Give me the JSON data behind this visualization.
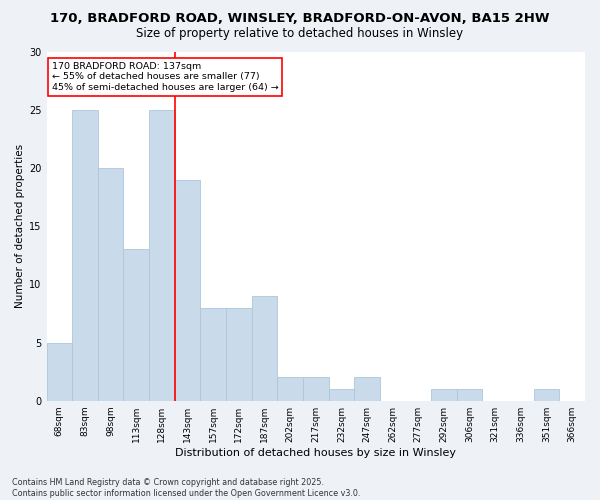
{
  "title1": "170, BRADFORD ROAD, WINSLEY, BRADFORD-ON-AVON, BA15 2HW",
  "title2": "Size of property relative to detached houses in Winsley",
  "xlabel": "Distribution of detached houses by size in Winsley",
  "ylabel": "Number of detached properties",
  "categories": [
    "68sqm",
    "83sqm",
    "98sqm",
    "113sqm",
    "128sqm",
    "143sqm",
    "157sqm",
    "172sqm",
    "187sqm",
    "202sqm",
    "217sqm",
    "232sqm",
    "247sqm",
    "262sqm",
    "277sqm",
    "292sqm",
    "306sqm",
    "321sqm",
    "336sqm",
    "351sqm",
    "366sqm"
  ],
  "values": [
    5,
    25,
    20,
    13,
    25,
    19,
    8,
    8,
    9,
    2,
    2,
    1,
    2,
    0,
    0,
    1,
    1,
    0,
    0,
    1,
    0
  ],
  "bar_color": "#c9daea",
  "bar_edgecolor": "#aec6d8",
  "vline_x": 4.5,
  "vline_color": "red",
  "annotation_text": "170 BRADFORD ROAD: 137sqm\n← 55% of detached houses are smaller (77)\n45% of semi-detached houses are larger (64) →",
  "annotation_box_color": "white",
  "annotation_box_edgecolor": "red",
  "ylim": [
    0,
    30
  ],
  "yticks": [
    0,
    5,
    10,
    15,
    20,
    25,
    30
  ],
  "plot_bg_color": "#ffffff",
  "fig_bg_color": "#eef2f7",
  "grid_color": "#ffffff",
  "footnote": "Contains HM Land Registry data © Crown copyright and database right 2025.\nContains public sector information licensed under the Open Government Licence v3.0.",
  "title_fontsize": 9.5,
  "subtitle_fontsize": 8.5,
  "axis_label_fontsize": 7.5,
  "xlabel_fontsize": 8.0,
  "tick_fontsize": 6.5,
  "annotation_fontsize": 6.8,
  "footnote_fontsize": 5.8
}
